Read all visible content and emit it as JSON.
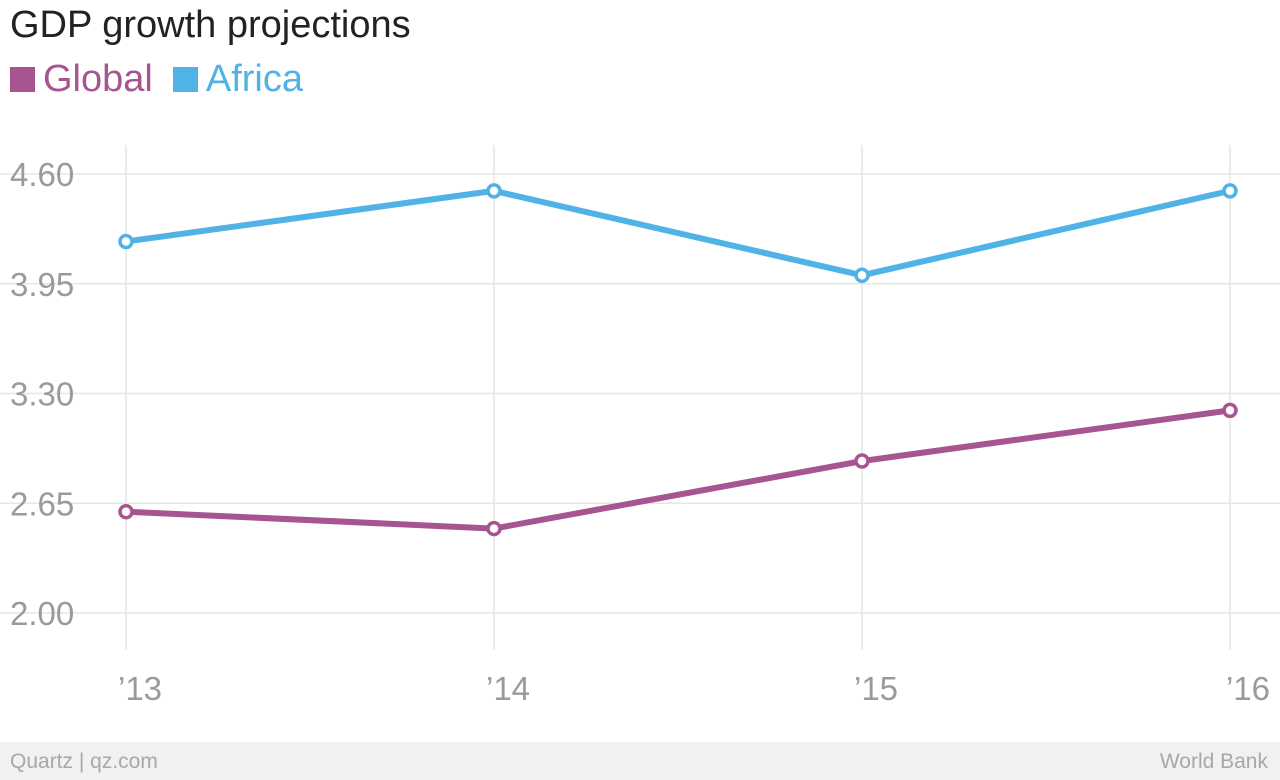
{
  "colors": {
    "global": "#a75591",
    "africa": "#51b2e5",
    "grid": "#e6e6e6"
  },
  "footer": {
    "left": "Quartz | qz.com",
    "right": "World Bank"
  },
  "chart_data": {
    "type": "line",
    "title": "GDP growth projections",
    "categories": [
      "’13",
      "’14",
      "’15",
      "’16"
    ],
    "series": [
      {
        "name": "Global",
        "color": "#a75591",
        "values": [
          2.6,
          2.5,
          2.9,
          3.2
        ]
      },
      {
        "name": "Africa",
        "color": "#51b2e5",
        "values": [
          4.2,
          4.5,
          4.0,
          4.5
        ]
      }
    ],
    "yticks": [
      "4.60",
      "3.95",
      "3.30",
      "2.65",
      "2.00"
    ],
    "ylim": [
      2.0,
      4.6
    ],
    "grid": true,
    "legend": "top-left"
  }
}
